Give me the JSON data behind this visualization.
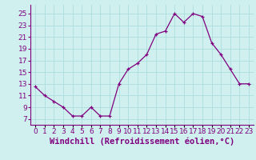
{
  "x": [
    0,
    1,
    2,
    3,
    4,
    5,
    6,
    7,
    8,
    9,
    10,
    11,
    12,
    13,
    14,
    15,
    16,
    17,
    18,
    19,
    20,
    21,
    22,
    23
  ],
  "y": [
    12.5,
    11.0,
    10.0,
    9.0,
    7.5,
    7.5,
    9.0,
    7.5,
    7.5,
    13.0,
    15.5,
    16.5,
    18.0,
    21.5,
    22.0,
    25.0,
    23.5,
    25.0,
    24.5,
    20.0,
    18.0,
    15.5,
    13.0,
    13.0
  ],
  "line_color": "#800080",
  "marker": "+",
  "bg_color": "#cff0ee",
  "grid_color": "#aadddd",
  "xlabel": "Windchill (Refroidissement éolien,°C)",
  "xlabel_color": "#800080",
  "ylabel_ticks": [
    7,
    9,
    11,
    13,
    15,
    17,
    19,
    21,
    23,
    25
  ],
  "xtick_labels": [
    "0",
    "1",
    "2",
    "3",
    "4",
    "5",
    "6",
    "7",
    "8",
    "9",
    "10",
    "11",
    "12",
    "13",
    "14",
    "15",
    "16",
    "17",
    "18",
    "19",
    "20",
    "21",
    "22",
    "23"
  ],
  "ylim": [
    6.0,
    26.5
  ],
  "xlim": [
    -0.5,
    23.5
  ],
  "tick_color": "#800080",
  "tick_fontsize": 6.5,
  "xlabel_fontsize": 7.5,
  "spine_color": "#800080"
}
